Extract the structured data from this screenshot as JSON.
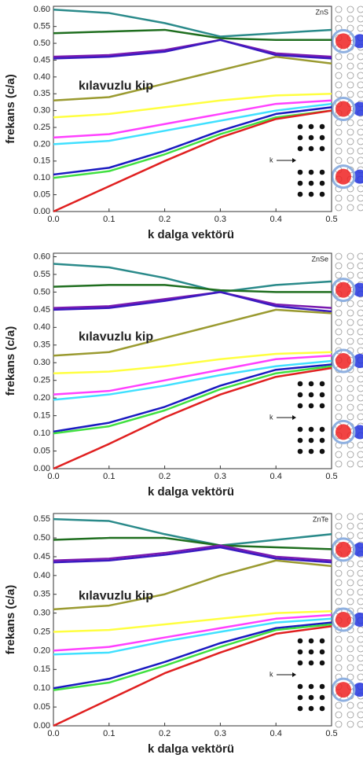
{
  "chart_data": [
    {
      "type": "line",
      "label": "ZnS",
      "annotation": "kılavuzlu kip",
      "inset_label": "k",
      "xlabel": "k dalga vektörü",
      "ylabel": "frekans (c/a)",
      "x": [
        0,
        0.1,
        0.2,
        0.3,
        0.4,
        0.5
      ],
      "xlim": [
        0,
        0.5
      ],
      "xticks": [
        {
          "value": 0,
          "label": "0.0"
        },
        0.1,
        0.2,
        0.3,
        0.4,
        0.5
      ],
      "ylim": [
        0,
        0.61
      ],
      "yticks": [
        {
          "value": 0,
          "label": "0.00"
        },
        0.05,
        {
          "value": 0.1,
          "label": "0.10"
        },
        0.15,
        {
          "value": 0.2,
          "label": "0.20"
        },
        0.25,
        {
          "value": 0.3,
          "label": "0.30"
        },
        0.35,
        {
          "value": 0.4,
          "label": "0.40"
        },
        0.45,
        {
          "value": 0.5,
          "label": "0.50"
        },
        0.55,
        {
          "value": 0.6,
          "label": "0.60"
        }
      ],
      "series": [
        {
          "color": "#2a8a8a",
          "values": [
            0.6,
            0.59,
            0.56,
            0.52,
            0.53,
            0.54
          ]
        },
        {
          "color": "#1f6e1f",
          "values": [
            0.53,
            0.535,
            0.54,
            0.515,
            0.51,
            0.51
          ]
        },
        {
          "color": "#7a1ab0",
          "values": [
            0.46,
            0.465,
            0.48,
            0.51,
            0.47,
            0.46
          ]
        },
        {
          "color": "#3a1ac0",
          "values": [
            0.455,
            0.46,
            0.475,
            0.51,
            0.465,
            0.455
          ]
        },
        {
          "color": "#9a9a30",
          "values": [
            0.33,
            0.34,
            0.38,
            0.42,
            0.46,
            0.44
          ]
        },
        {
          "color": "#ffff40",
          "values": [
            0.28,
            0.29,
            0.31,
            0.33,
            0.345,
            0.35
          ]
        },
        {
          "color": "#ff40ff",
          "values": [
            0.22,
            0.23,
            0.26,
            0.29,
            0.32,
            0.33
          ]
        },
        {
          "color": "#40e0ff",
          "values": [
            0.2,
            0.21,
            0.24,
            0.27,
            0.3,
            0.32
          ]
        },
        {
          "color": "#1a1ac0",
          "values": [
            0.11,
            0.13,
            0.18,
            0.24,
            0.29,
            0.31
          ]
        },
        {
          "color": "#40e040",
          "values": [
            0.1,
            0.12,
            0.17,
            0.23,
            0.28,
            0.3
          ]
        },
        {
          "color": "#e02020",
          "values": [
            0,
            0.075,
            0.15,
            0.22,
            0.275,
            0.3
          ]
        }
      ]
    },
    {
      "type": "line",
      "label": "ZnSe",
      "annotation": "kılavuzlu kip",
      "inset_label": "k",
      "xlabel": "k dalga vektörü",
      "ylabel": "frekans (c/a)",
      "x": [
        0,
        0.1,
        0.2,
        0.3,
        0.4,
        0.5
      ],
      "xlim": [
        0,
        0.5
      ],
      "xticks": [
        {
          "value": 0,
          "label": "0.0"
        },
        0.1,
        0.2,
        0.3,
        0.4,
        0.5
      ],
      "ylim": [
        0,
        0.61
      ],
      "yticks": [
        {
          "value": 0,
          "label": "0.00"
        },
        0.05,
        {
          "value": 0.1,
          "label": "0.10"
        },
        0.15,
        {
          "value": 0.2,
          "label": "0.20"
        },
        0.25,
        {
          "value": 0.3,
          "label": "0.30"
        },
        0.35,
        {
          "value": 0.4,
          "label": "0.40"
        },
        0.45,
        {
          "value": 0.5,
          "label": "0.50"
        },
        0.55,
        {
          "value": 0.6,
          "label": "0.60"
        }
      ],
      "series": [
        {
          "color": "#2a8a8a",
          "values": [
            0.58,
            0.57,
            0.54,
            0.5,
            0.52,
            0.53
          ]
        },
        {
          "color": "#1f6e1f",
          "values": [
            0.515,
            0.52,
            0.52,
            0.505,
            0.5,
            0.5
          ]
        },
        {
          "color": "#7a1ab0",
          "values": [
            0.455,
            0.46,
            0.48,
            0.5,
            0.465,
            0.455
          ]
        },
        {
          "color": "#3a1ac0",
          "values": [
            0.45,
            0.455,
            0.475,
            0.5,
            0.46,
            0.445
          ]
        },
        {
          "color": "#9a9a30",
          "values": [
            0.32,
            0.33,
            0.37,
            0.41,
            0.45,
            0.44
          ]
        },
        {
          "color": "#ffff40",
          "values": [
            0.27,
            0.275,
            0.29,
            0.31,
            0.325,
            0.33
          ]
        },
        {
          "color": "#ff40ff",
          "values": [
            0.21,
            0.22,
            0.25,
            0.28,
            0.31,
            0.32
          ]
        },
        {
          "color": "#40e0ff",
          "values": [
            0.195,
            0.21,
            0.235,
            0.265,
            0.29,
            0.305
          ]
        },
        {
          "color": "#1a1ac0",
          "values": [
            0.105,
            0.13,
            0.175,
            0.235,
            0.28,
            0.295
          ]
        },
        {
          "color": "#40e040",
          "values": [
            0.1,
            0.12,
            0.165,
            0.225,
            0.27,
            0.29
          ]
        },
        {
          "color": "#e02020",
          "values": [
            0,
            0.07,
            0.145,
            0.21,
            0.26,
            0.285
          ]
        }
      ]
    },
    {
      "type": "line",
      "label": "ZnTe",
      "annotation": "kılavuzlu kip",
      "inset_label": "k",
      "xlabel": "k dalga vektörü",
      "ylabel": "frekans (c/a)",
      "x": [
        0,
        0.1,
        0.2,
        0.3,
        0.4,
        0.5
      ],
      "xlim": [
        0,
        0.5
      ],
      "xticks": [
        {
          "value": 0,
          "label": "0.0"
        },
        0.1,
        0.2,
        0.3,
        0.4,
        0.5
      ],
      "ylim": [
        0,
        0.565
      ],
      "yticks": [
        {
          "value": 0,
          "label": "0.00"
        },
        0.05,
        {
          "value": 0.1,
          "label": "0.10"
        },
        0.15,
        {
          "value": 0.2,
          "label": "0.20"
        },
        0.25,
        {
          "value": 0.3,
          "label": "0.30"
        },
        0.35,
        {
          "value": 0.4,
          "label": "0.40"
        },
        0.45,
        {
          "value": 0.5,
          "label": "0.50"
        },
        0.55
      ],
      "series": [
        {
          "color": "#2a8a8a",
          "values": [
            0.55,
            0.545,
            0.51,
            0.48,
            0.495,
            0.51
          ]
        },
        {
          "color": "#1f6e1f",
          "values": [
            0.495,
            0.5,
            0.5,
            0.48,
            0.475,
            0.47
          ]
        },
        {
          "color": "#7a1ab0",
          "values": [
            0.44,
            0.445,
            0.46,
            0.48,
            0.45,
            0.44
          ]
        },
        {
          "color": "#3a1ac0",
          "values": [
            0.435,
            0.44,
            0.455,
            0.475,
            0.445,
            0.435
          ]
        },
        {
          "color": "#9a9a30",
          "values": [
            0.31,
            0.32,
            0.35,
            0.4,
            0.44,
            0.425
          ]
        },
        {
          "color": "#ffff40",
          "values": [
            0.25,
            0.255,
            0.27,
            0.285,
            0.3,
            0.305
          ]
        },
        {
          "color": "#ff40ff",
          "values": [
            0.2,
            0.21,
            0.235,
            0.26,
            0.285,
            0.295
          ]
        },
        {
          "color": "#40e0ff",
          "values": [
            0.19,
            0.195,
            0.225,
            0.25,
            0.275,
            0.285
          ]
        },
        {
          "color": "#1a1ac0",
          "values": [
            0.1,
            0.125,
            0.17,
            0.22,
            0.26,
            0.275
          ]
        },
        {
          "color": "#40e040",
          "values": [
            0.095,
            0.115,
            0.16,
            0.21,
            0.255,
            0.27
          ]
        },
        {
          "color": "#e02020",
          "values": [
            0,
            0.07,
            0.14,
            0.195,
            0.245,
            0.265
          ]
        }
      ]
    }
  ]
}
